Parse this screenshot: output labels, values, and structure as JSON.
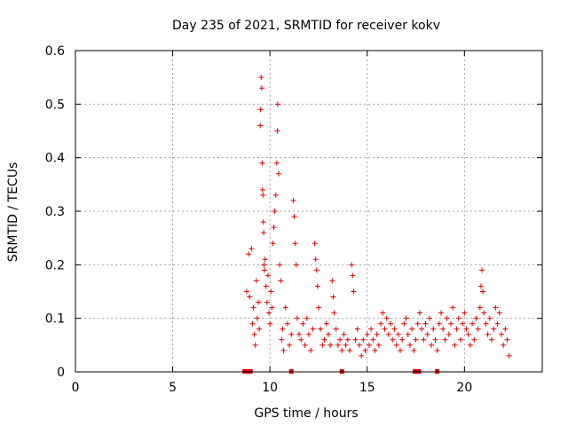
{
  "chart_data": {
    "type": "scatter",
    "title": "Day 235 of 2021, SRMTID for receiver kokv",
    "xlabel": "GPS time / hours",
    "ylabel": "SRMTID / TECUs",
    "xlim": [
      0,
      24
    ],
    "ylim": [
      0,
      0.6
    ],
    "xticks": [
      0,
      5,
      10,
      15,
      20
    ],
    "xtick_labels": [
      "0",
      "5",
      "10",
      "15",
      "20"
    ],
    "yticks": [
      0,
      0.1,
      0.2,
      0.3,
      0.4,
      0.5,
      0.6
    ],
    "ytick_labels": [
      "0",
      "0.1",
      "0.2",
      "0.3",
      "0.4",
      "0.5",
      "0.6"
    ],
    "grid": true,
    "legend": "none",
    "series": [
      {
        "name": "SRMTID",
        "marker": "+",
        "color": "#dd0000",
        "points": [
          [
            8.8,
            0.15
          ],
          [
            8.9,
            0.22
          ],
          [
            8.95,
            0.14
          ],
          [
            9.05,
            0.23
          ],
          [
            9.1,
            0.09
          ],
          [
            9.15,
            0.12
          ],
          [
            9.2,
            0.07
          ],
          [
            9.25,
            0.05
          ],
          [
            9.3,
            0.17
          ],
          [
            9.35,
            0.1
          ],
          [
            9.4,
            0.13
          ],
          [
            9.45,
            0.08
          ],
          [
            9.5,
            0.46
          ],
          [
            9.52,
            0.49
          ],
          [
            9.55,
            0.55
          ],
          [
            9.58,
            0.53
          ],
          [
            9.6,
            0.39
          ],
          [
            9.62,
            0.34
          ],
          [
            9.64,
            0.33
          ],
          [
            9.66,
            0.28
          ],
          [
            9.68,
            0.26
          ],
          [
            9.7,
            0.2
          ],
          [
            9.72,
            0.19
          ],
          [
            9.75,
            0.21
          ],
          [
            9.8,
            0.16
          ],
          [
            9.85,
            0.13
          ],
          [
            9.9,
            0.18
          ],
          [
            9.95,
            0.11
          ],
          [
            10.0,
            0.09
          ],
          [
            10.05,
            0.15
          ],
          [
            10.1,
            0.12
          ],
          [
            10.15,
            0.24
          ],
          [
            10.2,
            0.27
          ],
          [
            10.25,
            0.3
          ],
          [
            10.3,
            0.33
          ],
          [
            10.35,
            0.39
          ],
          [
            10.38,
            0.45
          ],
          [
            10.4,
            0.5
          ],
          [
            10.45,
            0.37
          ],
          [
            10.5,
            0.2
          ],
          [
            10.55,
            0.17
          ],
          [
            10.6,
            0.06
          ],
          [
            10.65,
            0.08
          ],
          [
            10.7,
            0.04
          ],
          [
            10.8,
            0.12
          ],
          [
            10.9,
            0.09
          ],
          [
            11.0,
            0.05
          ],
          [
            11.1,
            0.07
          ],
          [
            11.2,
            0.32
          ],
          [
            11.25,
            0.29
          ],
          [
            11.3,
            0.24
          ],
          [
            11.35,
            0.2
          ],
          [
            11.4,
            0.1
          ],
          [
            11.5,
            0.07
          ],
          [
            11.6,
            0.06
          ],
          [
            11.7,
            0.09
          ],
          [
            11.8,
            0.05
          ],
          [
            11.9,
            0.1
          ],
          [
            12.0,
            0.07
          ],
          [
            12.1,
            0.04
          ],
          [
            12.2,
            0.08
          ],
          [
            12.3,
            0.24
          ],
          [
            12.35,
            0.21
          ],
          [
            12.4,
            0.19
          ],
          [
            12.45,
            0.16
          ],
          [
            12.5,
            0.12
          ],
          [
            12.6,
            0.08
          ],
          [
            12.7,
            0.05
          ],
          [
            12.8,
            0.06
          ],
          [
            12.9,
            0.09
          ],
          [
            13.0,
            0.07
          ],
          [
            13.1,
            0.05
          ],
          [
            13.2,
            0.17
          ],
          [
            13.25,
            0.14
          ],
          [
            13.3,
            0.11
          ],
          [
            13.4,
            0.08
          ],
          [
            13.5,
            0.05
          ],
          [
            13.6,
            0.06
          ],
          [
            13.7,
            0.04
          ],
          [
            13.8,
            0.07
          ],
          [
            13.9,
            0.05
          ],
          [
            14.0,
            0.06
          ],
          [
            14.1,
            0.04
          ],
          [
            14.2,
            0.2
          ],
          [
            14.25,
            0.18
          ],
          [
            14.3,
            0.15
          ],
          [
            14.4,
            0.06
          ],
          [
            14.5,
            0.08
          ],
          [
            14.6,
            0.05
          ],
          [
            14.7,
            0.03
          ],
          [
            14.8,
            0.06
          ],
          [
            14.9,
            0.04
          ],
          [
            15.0,
            0.07
          ],
          [
            15.1,
            0.05
          ],
          [
            15.2,
            0.08
          ],
          [
            15.3,
            0.06
          ],
          [
            15.4,
            0.04
          ],
          [
            15.5,
            0.07
          ],
          [
            15.6,
            0.05
          ],
          [
            15.7,
            0.09
          ],
          [
            15.8,
            0.11
          ],
          [
            15.9,
            0.08
          ],
          [
            16.0,
            0.1
          ],
          [
            16.1,
            0.07
          ],
          [
            16.2,
            0.09
          ],
          [
            16.3,
            0.06
          ],
          [
            16.4,
            0.08
          ],
          [
            16.5,
            0.05
          ],
          [
            16.6,
            0.07
          ],
          [
            16.7,
            0.04
          ],
          [
            16.8,
            0.06
          ],
          [
            16.9,
            0.09
          ],
          [
            17.0,
            0.1
          ],
          [
            17.1,
            0.07
          ],
          [
            17.2,
            0.05
          ],
          [
            17.3,
            0.08
          ],
          [
            17.4,
            0.04
          ],
          [
            17.5,
            0.06
          ],
          [
            17.6,
            0.09
          ],
          [
            17.7,
            0.11
          ],
          [
            17.8,
            0.08
          ],
          [
            17.9,
            0.06
          ],
          [
            18.0,
            0.09
          ],
          [
            18.1,
            0.07
          ],
          [
            18.2,
            0.1
          ],
          [
            18.3,
            0.05
          ],
          [
            18.4,
            0.08
          ],
          [
            18.5,
            0.06
          ],
          [
            18.6,
            0.04
          ],
          [
            18.7,
            0.09
          ],
          [
            18.8,
            0.11
          ],
          [
            18.9,
            0.08
          ],
          [
            19.0,
            0.06
          ],
          [
            19.1,
            0.1
          ],
          [
            19.2,
            0.07
          ],
          [
            19.3,
            0.09
          ],
          [
            19.4,
            0.12
          ],
          [
            19.5,
            0.05
          ],
          [
            19.6,
            0.08
          ],
          [
            19.7,
            0.1
          ],
          [
            19.8,
            0.06
          ],
          [
            19.9,
            0.09
          ],
          [
            20.0,
            0.11
          ],
          [
            20.1,
            0.08
          ],
          [
            20.2,
            0.07
          ],
          [
            20.3,
            0.05
          ],
          [
            20.4,
            0.09
          ],
          [
            20.5,
            0.06
          ],
          [
            20.6,
            0.1
          ],
          [
            20.7,
            0.08
          ],
          [
            20.8,
            0.12
          ],
          [
            20.85,
            0.16
          ],
          [
            20.9,
            0.19
          ],
          [
            20.95,
            0.15
          ],
          [
            21.0,
            0.11
          ],
          [
            21.1,
            0.09
          ],
          [
            21.2,
            0.07
          ],
          [
            21.3,
            0.1
          ],
          [
            21.4,
            0.06
          ],
          [
            21.5,
            0.08
          ],
          [
            21.6,
            0.12
          ],
          [
            21.7,
            0.09
          ],
          [
            21.8,
            0.11
          ],
          [
            21.9,
            0.07
          ],
          [
            22.0,
            0.05
          ],
          [
            22.1,
            0.08
          ],
          [
            22.2,
            0.06
          ],
          [
            22.3,
            0.03
          ]
        ]
      }
    ],
    "gap_markers": [
      8.7,
      8.85,
      9.0,
      11.1,
      13.7,
      17.45,
      17.65,
      18.6
    ]
  }
}
